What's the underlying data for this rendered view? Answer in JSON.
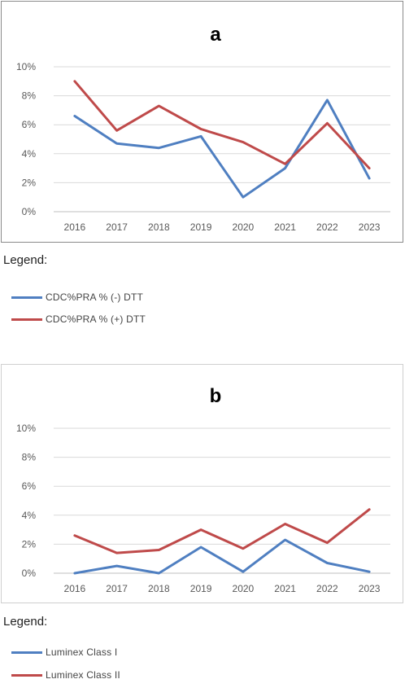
{
  "colors": {
    "series1": "#4f7fc1",
    "series2": "#bf4a4a",
    "grid": "#d9d9d9",
    "axis": "#bfbfbf",
    "text": "#595959"
  },
  "chart_data": [
    {
      "type": "line",
      "title": "a",
      "x": [
        "2016",
        "2017",
        "2018",
        "2019",
        "2020",
        "2021",
        "2022",
        "2023"
      ],
      "ylim": [
        0,
        10
      ],
      "yticks": [
        "0%",
        "2%",
        "4%",
        "6%",
        "8%",
        "10%"
      ],
      "grid": true,
      "series": [
        {
          "name": "CDC%PRA % (-) DTT",
          "values": [
            6.6,
            4.7,
            4.4,
            5.2,
            1.0,
            3.0,
            7.7,
            2.3
          ]
        },
        {
          "name": "CDC%PRA % (+) DTT",
          "values": [
            9.0,
            5.6,
            7.3,
            5.7,
            4.8,
            3.3,
            6.1,
            3.0
          ]
        }
      ]
    },
    {
      "type": "line",
      "title": "b",
      "x": [
        "2016",
        "2017",
        "2018",
        "2019",
        "2020",
        "2021",
        "2022",
        "2023"
      ],
      "ylim": [
        0,
        10
      ],
      "yticks": [
        "0%",
        "2%",
        "4%",
        "6%",
        "8%",
        "10%"
      ],
      "grid": true,
      "series": [
        {
          "name": "Luminex Class I",
          "values": [
            0.0,
            0.5,
            0.0,
            1.8,
            0.1,
            2.3,
            0.7,
            0.1
          ]
        },
        {
          "name": "Luminex Class II",
          "values": [
            2.6,
            1.4,
            1.6,
            3.0,
            1.7,
            3.4,
            2.1,
            4.4
          ]
        }
      ]
    }
  ],
  "legends": [
    {
      "title": "Legend:",
      "items": [
        "CDC%PRA % (-) DTT",
        "CDC%PRA % (+) DTT"
      ]
    },
    {
      "title": "Legend:",
      "items": [
        "Luminex Class I",
        "Luminex Class II"
      ]
    }
  ]
}
